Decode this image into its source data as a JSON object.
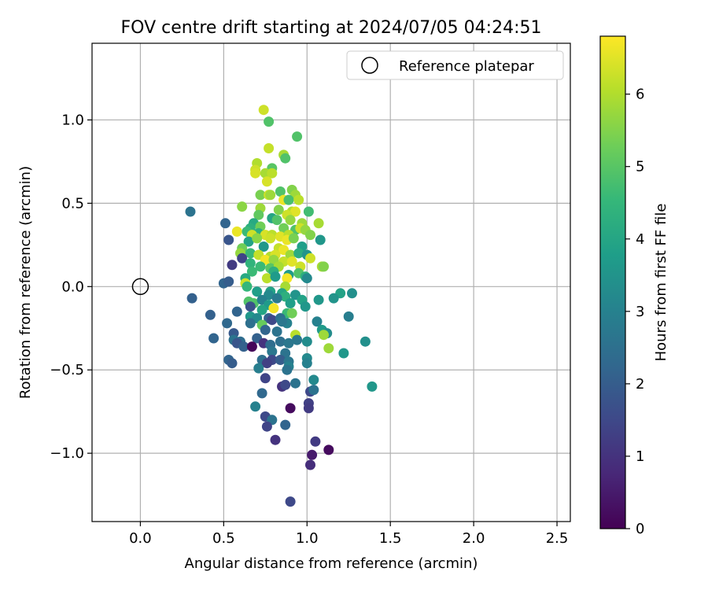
{
  "chart_data": {
    "type": "scatter",
    "title": "FOV centre drift starting at 2024/07/05 04:24:51",
    "xlabel": "Angular distance from reference (arcmin)",
    "ylabel": "Rotation from reference (arcmin)",
    "xlim": [
      -0.29,
      2.58
    ],
    "ylim": [
      -1.41,
      1.46
    ],
    "x_ticks": [
      0.0,
      0.5,
      1.0,
      1.5,
      2.0,
      2.5
    ],
    "x_tick_labels": [
      "0.0",
      "0.5",
      "1.0",
      "1.5",
      "2.0",
      "2.5"
    ],
    "y_ticks": [
      -1.0,
      -0.5,
      0.0,
      0.5,
      1.0
    ],
    "y_tick_labels": [
      "−1.0",
      "−0.5",
      "0.0",
      "0.5",
      "1.0"
    ],
    "grid": true,
    "legend": {
      "position": "top-right",
      "entries": [
        "Reference platepar"
      ]
    },
    "reference_point": {
      "x": 0.0,
      "y": 0.0
    },
    "colorbar": {
      "label": "Hours from first FF file",
      "min": 0,
      "max": 6.8,
      "ticks": [
        0,
        1,
        2,
        3,
        4,
        5,
        6
      ],
      "tick_labels": [
        "0",
        "1",
        "2",
        "3",
        "4",
        "5",
        "6"
      ],
      "colormap": "viridis",
      "colors": [
        "#440154",
        "#482878",
        "#3e4989",
        "#31688e",
        "#26828e",
        "#1f9e89",
        "#35b779",
        "#6ece58",
        "#b5de2b",
        "#fde725"
      ]
    },
    "series": [
      {
        "points": [
          [
            0.74,
            1.06,
            6.3
          ],
          [
            0.77,
            0.99,
            4.9
          ],
          [
            0.94,
            0.9,
            4.9
          ],
          [
            0.77,
            0.83,
            6.2
          ],
          [
            0.86,
            0.79,
            5.9
          ],
          [
            0.87,
            0.77,
            4.9
          ],
          [
            0.7,
            0.74,
            6.0
          ],
          [
            0.79,
            0.71,
            5.0
          ],
          [
            0.69,
            0.7,
            6.3
          ],
          [
            0.69,
            0.68,
            6.4
          ],
          [
            0.75,
            0.68,
            5.9
          ],
          [
            0.79,
            0.68,
            6.1
          ],
          [
            0.76,
            0.63,
            6.4
          ],
          [
            0.84,
            0.57,
            4.9
          ],
          [
            0.91,
            0.58,
            5.5
          ],
          [
            0.72,
            0.55,
            5.4
          ],
          [
            0.77,
            0.55,
            6.3
          ],
          [
            0.78,
            0.55,
            5.8
          ],
          [
            0.93,
            0.55,
            5.8
          ],
          [
            0.86,
            0.52,
            6.6
          ],
          [
            0.89,
            0.52,
            4.8
          ],
          [
            0.95,
            0.52,
            6.1
          ],
          [
            0.61,
            0.48,
            5.6
          ],
          [
            0.72,
            0.47,
            5.8
          ],
          [
            0.83,
            0.46,
            5.5
          ],
          [
            0.91,
            0.45,
            6.0
          ],
          [
            0.93,
            0.45,
            6.5
          ],
          [
            0.88,
            0.43,
            6.3
          ],
          [
            1.01,
            0.45,
            4.7
          ],
          [
            0.71,
            0.43,
            5.1
          ],
          [
            0.79,
            0.41,
            4.0
          ],
          [
            0.82,
            0.4,
            4.9
          ],
          [
            0.9,
            0.4,
            5.7
          ],
          [
            0.68,
            0.38,
            4.1
          ],
          [
            0.97,
            0.38,
            5.8
          ],
          [
            0.51,
            0.38,
            2.2
          ],
          [
            1.07,
            0.38,
            5.9
          ],
          [
            0.66,
            0.35,
            4.3
          ],
          [
            0.72,
            0.36,
            5.3
          ],
          [
            0.86,
            0.35,
            5.3
          ],
          [
            0.93,
            0.34,
            4.9
          ],
          [
            0.96,
            0.35,
            6.3
          ],
          [
            0.99,
            0.34,
            5.7
          ],
          [
            0.58,
            0.33,
            6.6
          ],
          [
            0.64,
            0.33,
            4.6
          ],
          [
            0.71,
            0.32,
            4.3
          ],
          [
            0.67,
            0.31,
            6.3
          ],
          [
            0.75,
            0.31,
            6.4
          ],
          [
            0.79,
            0.31,
            6.1
          ],
          [
            0.84,
            0.3,
            6.5
          ],
          [
            0.89,
            0.31,
            6.1
          ],
          [
            1.02,
            0.31,
            5.5
          ],
          [
            0.53,
            0.28,
            1.8
          ],
          [
            0.65,
            0.27,
            3.9
          ],
          [
            0.7,
            0.29,
            5.6
          ],
          [
            0.78,
            0.29,
            6.3
          ],
          [
            0.88,
            0.28,
            6.6
          ],
          [
            0.92,
            0.29,
            5.4
          ],
          [
            1.08,
            0.28,
            3.6
          ],
          [
            0.61,
            0.23,
            5.3
          ],
          [
            0.74,
            0.24,
            3.6
          ],
          [
            0.83,
            0.23,
            6.2
          ],
          [
            0.86,
            0.22,
            6.6
          ],
          [
            0.97,
            0.24,
            3.8
          ],
          [
            0.6,
            0.2,
            5.7
          ],
          [
            0.66,
            0.2,
            4.6
          ],
          [
            0.71,
            0.19,
            6.2
          ],
          [
            0.78,
            0.18,
            6.0
          ],
          [
            0.81,
            0.19,
            6.4
          ],
          [
            0.9,
            0.19,
            5.8
          ],
          [
            0.95,
            0.2,
            4.2
          ],
          [
            1.0,
            0.19,
            3.5
          ],
          [
            1.02,
            0.17,
            6.3
          ],
          [
            0.61,
            0.17,
            1.4
          ],
          [
            0.75,
            0.16,
            6.7
          ],
          [
            0.8,
            0.16,
            5.7
          ],
          [
            0.86,
            0.15,
            6.2
          ],
          [
            0.91,
            0.15,
            6.5
          ],
          [
            0.55,
            0.13,
            1.2
          ],
          [
            0.66,
            0.14,
            4.4
          ],
          [
            0.72,
            0.12,
            4.6
          ],
          [
            0.78,
            0.11,
            5.0
          ],
          [
            0.83,
            0.12,
            5.9
          ],
          [
            0.96,
            0.12,
            6.3
          ],
          [
            1.09,
            0.12,
            5.9
          ],
          [
            1.1,
            0.12,
            5.5
          ],
          [
            0.67,
            0.09,
            4.6
          ],
          [
            0.8,
            0.09,
            4.3
          ],
          [
            0.89,
            0.07,
            3.7
          ],
          [
            0.95,
            0.08,
            4.9
          ],
          [
            0.99,
            0.06,
            4.3
          ],
          [
            0.63,
            0.05,
            4.1
          ],
          [
            0.76,
            0.05,
            6.1
          ],
          [
            0.81,
            0.06,
            3.7
          ],
          [
            0.88,
            0.05,
            6.7
          ],
          [
            1.0,
            0.05,
            3.2
          ],
          [
            0.5,
            0.02,
            2.2
          ],
          [
            0.53,
            0.03,
            2.0
          ],
          [
            0.63,
            0.02,
            6.3
          ],
          [
            0.64,
            0.0,
            4.5
          ],
          [
            0.87,
            0.0,
            5.9
          ],
          [
            0.7,
            -0.03,
            3.8
          ],
          [
            0.78,
            -0.03,
            3.9
          ],
          [
            0.85,
            -0.04,
            4.0
          ],
          [
            0.77,
            -0.05,
            3.2
          ],
          [
            0.87,
            -0.06,
            4.3
          ],
          [
            0.93,
            -0.05,
            3.5
          ],
          [
            1.2,
            -0.04,
            3.9
          ],
          [
            1.27,
            -0.04,
            3.4
          ],
          [
            0.31,
            -0.07,
            2.1
          ],
          [
            0.65,
            -0.09,
            4.9
          ],
          [
            0.68,
            -0.1,
            4.9
          ],
          [
            0.73,
            -0.08,
            3.0
          ],
          [
            0.82,
            -0.07,
            2.8
          ],
          [
            0.97,
            -0.08,
            3.9
          ],
          [
            1.07,
            -0.08,
            3.6
          ],
          [
            1.16,
            -0.07,
            3.5
          ],
          [
            0.77,
            -0.11,
            3.7
          ],
          [
            0.9,
            -0.1,
            3.8
          ],
          [
            0.66,
            -0.12,
            1.7
          ],
          [
            0.8,
            -0.13,
            6.7
          ],
          [
            0.99,
            -0.12,
            3.6
          ],
          [
            0.42,
            -0.17,
            2.1
          ],
          [
            0.58,
            -0.15,
            2.2
          ],
          [
            0.73,
            -0.14,
            4.0
          ],
          [
            0.88,
            -0.16,
            4.6
          ],
          [
            0.91,
            -0.16,
            5.3
          ],
          [
            1.25,
            -0.18,
            2.9
          ],
          [
            0.66,
            -0.18,
            3.6
          ],
          [
            0.7,
            -0.19,
            3.2
          ],
          [
            0.77,
            -0.19,
            2.1
          ],
          [
            0.79,
            -0.2,
            1.5
          ],
          [
            0.84,
            -0.19,
            2.5
          ],
          [
            0.88,
            -0.22,
            3.0
          ],
          [
            1.06,
            -0.21,
            3.0
          ],
          [
            0.52,
            -0.22,
            2.3
          ],
          [
            0.66,
            -0.22,
            2.5
          ],
          [
            0.73,
            -0.23,
            5.2
          ],
          [
            0.85,
            -0.21,
            2.7
          ],
          [
            0.75,
            -0.26,
            2.2
          ],
          [
            0.82,
            -0.27,
            2.6
          ],
          [
            1.09,
            -0.26,
            3.7
          ],
          [
            1.12,
            -0.28,
            3.3
          ],
          [
            0.44,
            -0.31,
            2.2
          ],
          [
            0.56,
            -0.28,
            1.9
          ],
          [
            0.93,
            -0.29,
            6.1
          ],
          [
            1.1,
            -0.29,
            5.8
          ],
          [
            0.7,
            -0.31,
            2.1
          ],
          [
            0.56,
            -0.32,
            2.6
          ],
          [
            0.6,
            -0.33,
            2.4
          ],
          [
            0.84,
            -0.33,
            2.5
          ],
          [
            0.94,
            -0.32,
            2.7
          ],
          [
            1.0,
            -0.33,
            3.3
          ],
          [
            1.35,
            -0.33,
            3.4
          ],
          [
            0.58,
            -0.34,
            1.8
          ],
          [
            0.62,
            -0.36,
            2.1
          ],
          [
            0.67,
            -0.36,
            0.1
          ],
          [
            0.74,
            -0.34,
            1.0
          ],
          [
            0.78,
            -0.35,
            2.4
          ],
          [
            0.89,
            -0.34,
            2.7
          ],
          [
            1.13,
            -0.37,
            5.8
          ],
          [
            1.22,
            -0.4,
            3.6
          ],
          [
            0.79,
            -0.39,
            2.7
          ],
          [
            0.87,
            -0.4,
            2.6
          ],
          [
            0.73,
            -0.44,
            2.5
          ],
          [
            0.79,
            -0.44,
            1.5
          ],
          [
            0.84,
            -0.44,
            2.0
          ],
          [
            1.0,
            -0.43,
            3.2
          ],
          [
            0.89,
            -0.45,
            2.7
          ],
          [
            0.53,
            -0.44,
            2.2
          ],
          [
            0.55,
            -0.46,
            2.0
          ],
          [
            0.76,
            -0.46,
            1.3
          ],
          [
            0.89,
            -0.48,
            3.0
          ],
          [
            1.0,
            -0.46,
            3.0
          ],
          [
            0.71,
            -0.49,
            2.9
          ],
          [
            0.88,
            -0.5,
            2.6
          ],
          [
            0.75,
            -0.55,
            1.4
          ],
          [
            1.04,
            -0.56,
            3.2
          ],
          [
            0.93,
            -0.58,
            2.6
          ],
          [
            0.85,
            -0.6,
            1.0
          ],
          [
            0.87,
            -0.59,
            1.5
          ],
          [
            1.39,
            -0.6,
            3.6
          ],
          [
            1.02,
            -0.63,
            1.5
          ],
          [
            0.73,
            -0.64,
            2.3
          ],
          [
            1.04,
            -0.62,
            2.6
          ],
          [
            0.69,
            -0.72,
            3.0
          ],
          [
            0.9,
            -0.73,
            0.2
          ],
          [
            1.01,
            -0.7,
            1.3
          ],
          [
            1.01,
            -0.73,
            1.2
          ],
          [
            0.75,
            -0.78,
            1.5
          ],
          [
            0.79,
            -0.8,
            2.6
          ],
          [
            0.76,
            -0.84,
            1.4
          ],
          [
            0.87,
            -0.83,
            2.2
          ],
          [
            0.81,
            -0.92,
            1.0
          ],
          [
            1.05,
            -0.93,
            1.2
          ],
          [
            1.13,
            -0.98,
            0.2
          ],
          [
            1.03,
            -1.01,
            0.5
          ],
          [
            1.02,
            -1.07,
            0.9
          ],
          [
            0.9,
            -1.29,
            1.5
          ],
          [
            0.3,
            0.45,
            2.6
          ]
        ]
      }
    ]
  }
}
